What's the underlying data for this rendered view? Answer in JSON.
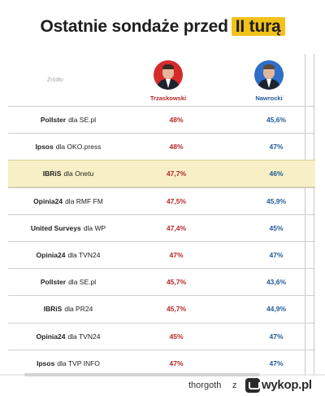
{
  "title": {
    "main": "Ostatnie sondaże przed",
    "highlight": "II turą"
  },
  "source_label": "Źródło",
  "candidates": [
    {
      "name": "Trzaskowski",
      "color": "#b8262a"
    },
    {
      "name": "Nawrocki",
      "color": "#1f5b9a"
    }
  ],
  "chart_data": {
    "type": "table",
    "title": "Ostatnie sondaże przed II turą",
    "columns": [
      "Źródło",
      "Trzaskowski",
      "Nawrocki"
    ],
    "rows": [
      {
        "pollster": "Pollster",
        "outlet": "dla SE.pl",
        "trzaskowski": "48%",
        "nawrocki": "45,6%",
        "highlighted": false
      },
      {
        "pollster": "Ipsos",
        "outlet": "dla OKO.press",
        "trzaskowski": "48%",
        "nawrocki": "47%",
        "highlighted": false
      },
      {
        "pollster": "IBRiS",
        "outlet": "dla Onetu",
        "trzaskowski": "47,7%",
        "nawrocki": "46%",
        "highlighted": true
      },
      {
        "pollster": "Opinia24",
        "outlet": "dla RMF FM",
        "trzaskowski": "47,5%",
        "nawrocki": "45,9%",
        "highlighted": false
      },
      {
        "pollster": "United Surveys",
        "outlet": "dla WP",
        "trzaskowski": "47,4%",
        "nawrocki": "45%",
        "highlighted": false
      },
      {
        "pollster": "Opinia24",
        "outlet": "dla TVN24",
        "trzaskowski": "47%",
        "nawrocki": "47%",
        "highlighted": false
      },
      {
        "pollster": "Pollster",
        "outlet": "dla SE.pl",
        "trzaskowski": "45,7%",
        "nawrocki": "43,6%",
        "highlighted": false
      },
      {
        "pollster": "IBRiS",
        "outlet": "dla PR24",
        "trzaskowski": "45,7%",
        "nawrocki": "44,9%",
        "highlighted": false
      },
      {
        "pollster": "Opinia24",
        "outlet": "dla TVN24",
        "trzaskowski": "45%",
        "nawrocki": "47%",
        "highlighted": false
      },
      {
        "pollster": "Ipsos",
        "outlet": "dla TVP INFO",
        "trzaskowski": "47%",
        "nawrocki": "47%",
        "highlighted": false
      }
    ]
  },
  "footer": {
    "user": "thorgoth",
    "separator": "z",
    "brand": "wykop.pl"
  },
  "colors": {
    "highlight": "#f2c21b",
    "row_highlight": "#f7efc5"
  }
}
